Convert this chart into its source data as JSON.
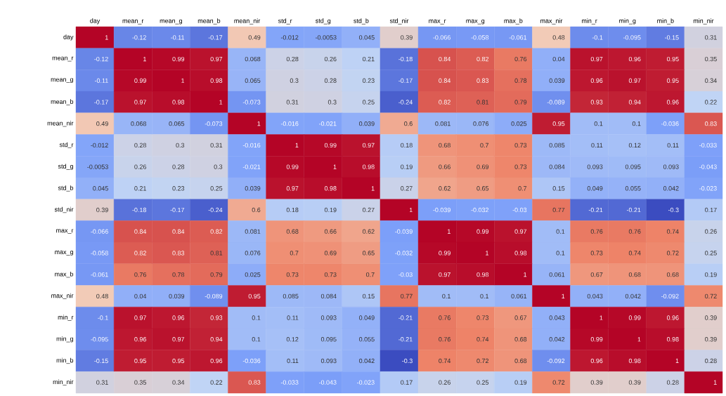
{
  "chart_data": {
    "type": "heatmap",
    "categories": [
      "day",
      "mean_r",
      "mean_g",
      "mean_b",
      "mean_nir",
      "std_r",
      "std_g",
      "std_b",
      "std_nir",
      "max_r",
      "max_g",
      "max_b",
      "max_nir",
      "min_r",
      "min_g",
      "min_b",
      "min_nir"
    ],
    "y_categories": [
      "day",
      "mean_r",
      "mean_g",
      "mean_b",
      "mean_nir",
      "std_r",
      "std_g",
      "std_b",
      "std_nir",
      "max_r",
      "max_g",
      "max_b",
      "max_nir",
      "min_r",
      "min_g",
      "min_b",
      "min_nir"
    ],
    "cells": [
      [
        1,
        -0.12,
        -0.11,
        -0.17,
        0.49,
        -0.012,
        -0.0053,
        0.045,
        0.39,
        -0.066,
        -0.058,
        -0.061,
        0.48,
        -0.1,
        -0.095,
        -0.15,
        0.31
      ],
      [
        -0.12,
        1,
        0.99,
        0.97,
        0.068,
        0.28,
        0.26,
        0.21,
        -0.18,
        0.84,
        0.82,
        0.76,
        0.04,
        0.97,
        0.96,
        0.95,
        0.35
      ],
      [
        -0.11,
        0.99,
        1,
        0.98,
        0.065,
        0.3,
        0.28,
        0.23,
        -0.17,
        0.84,
        0.83,
        0.78,
        0.039,
        0.96,
        0.97,
        0.95,
        0.34
      ],
      [
        -0.17,
        0.97,
        0.98,
        1,
        -0.073,
        0.31,
        0.3,
        0.25,
        -0.24,
        0.82,
        0.81,
        0.79,
        -0.089,
        0.93,
        0.94,
        0.96,
        0.22
      ],
      [
        0.49,
        0.068,
        0.065,
        -0.073,
        1,
        -0.016,
        -0.021,
        0.039,
        0.6,
        0.081,
        0.076,
        0.025,
        0.95,
        0.1,
        0.1,
        -0.036,
        0.83
      ],
      [
        -0.012,
        0.28,
        0.3,
        0.31,
        -0.016,
        1,
        0.99,
        0.97,
        0.18,
        0.68,
        0.7,
        0.73,
        0.085,
        0.11,
        0.12,
        0.11,
        -0.033
      ],
      [
        -0.0053,
        0.26,
        0.28,
        0.3,
        -0.021,
        0.99,
        1,
        0.98,
        0.19,
        0.66,
        0.69,
        0.73,
        0.084,
        0.093,
        0.095,
        0.093,
        -0.043
      ],
      [
        0.045,
        0.21,
        0.23,
        0.25,
        0.039,
        0.97,
        0.98,
        1,
        0.27,
        0.62,
        0.65,
        0.7,
        0.15,
        0.049,
        0.055,
        0.042,
        -0.023
      ],
      [
        0.39,
        -0.18,
        -0.17,
        -0.24,
        0.6,
        0.18,
        0.19,
        0.27,
        1,
        -0.039,
        -0.032,
        -0.03,
        0.77,
        -0.21,
        -0.21,
        -0.3,
        0.17
      ],
      [
        -0.066,
        0.84,
        0.84,
        0.82,
        0.081,
        0.68,
        0.66,
        0.62,
        -0.039,
        1,
        0.99,
        0.97,
        0.1,
        0.76,
        0.76,
        0.74,
        0.26
      ],
      [
        -0.058,
        0.82,
        0.83,
        0.81,
        0.076,
        0.7,
        0.69,
        0.65,
        -0.032,
        0.99,
        1,
        0.98,
        0.1,
        0.73,
        0.74,
        0.72,
        0.25
      ],
      [
        -0.061,
        0.76,
        0.78,
        0.79,
        0.025,
        0.73,
        0.73,
        0.7,
        -0.03,
        0.97,
        0.98,
        1,
        0.061,
        0.67,
        0.68,
        0.68,
        0.19
      ],
      [
        0.48,
        0.04,
        0.039,
        -0.089,
        0.95,
        0.085,
        0.084,
        0.15,
        0.77,
        0.1,
        0.1,
        0.061,
        1,
        0.043,
        0.042,
        -0.092,
        0.72
      ],
      [
        -0.1,
        0.97,
        0.96,
        0.93,
        0.1,
        0.11,
        0.093,
        0.049,
        -0.21,
        0.76,
        0.73,
        0.67,
        0.043,
        1,
        0.99,
        0.96,
        0.39
      ],
      [
        -0.095,
        0.96,
        0.97,
        0.94,
        0.1,
        0.12,
        0.095,
        0.055,
        -0.21,
        0.76,
        0.74,
        0.68,
        0.042,
        0.99,
        1,
        0.98,
        0.39
      ],
      [
        -0.15,
        0.95,
        0.95,
        0.96,
        -0.036,
        0.11,
        0.093,
        0.042,
        -0.3,
        0.74,
        0.72,
        0.68,
        -0.092,
        0.96,
        0.98,
        1,
        0.28
      ],
      [
        0.31,
        0.35,
        0.34,
        0.22,
        0.83,
        -0.033,
        -0.043,
        -0.023,
        0.17,
        0.26,
        0.25,
        0.19,
        0.72,
        0.39,
        0.39,
        0.28,
        1
      ]
    ],
    "data_labels": true
  }
}
